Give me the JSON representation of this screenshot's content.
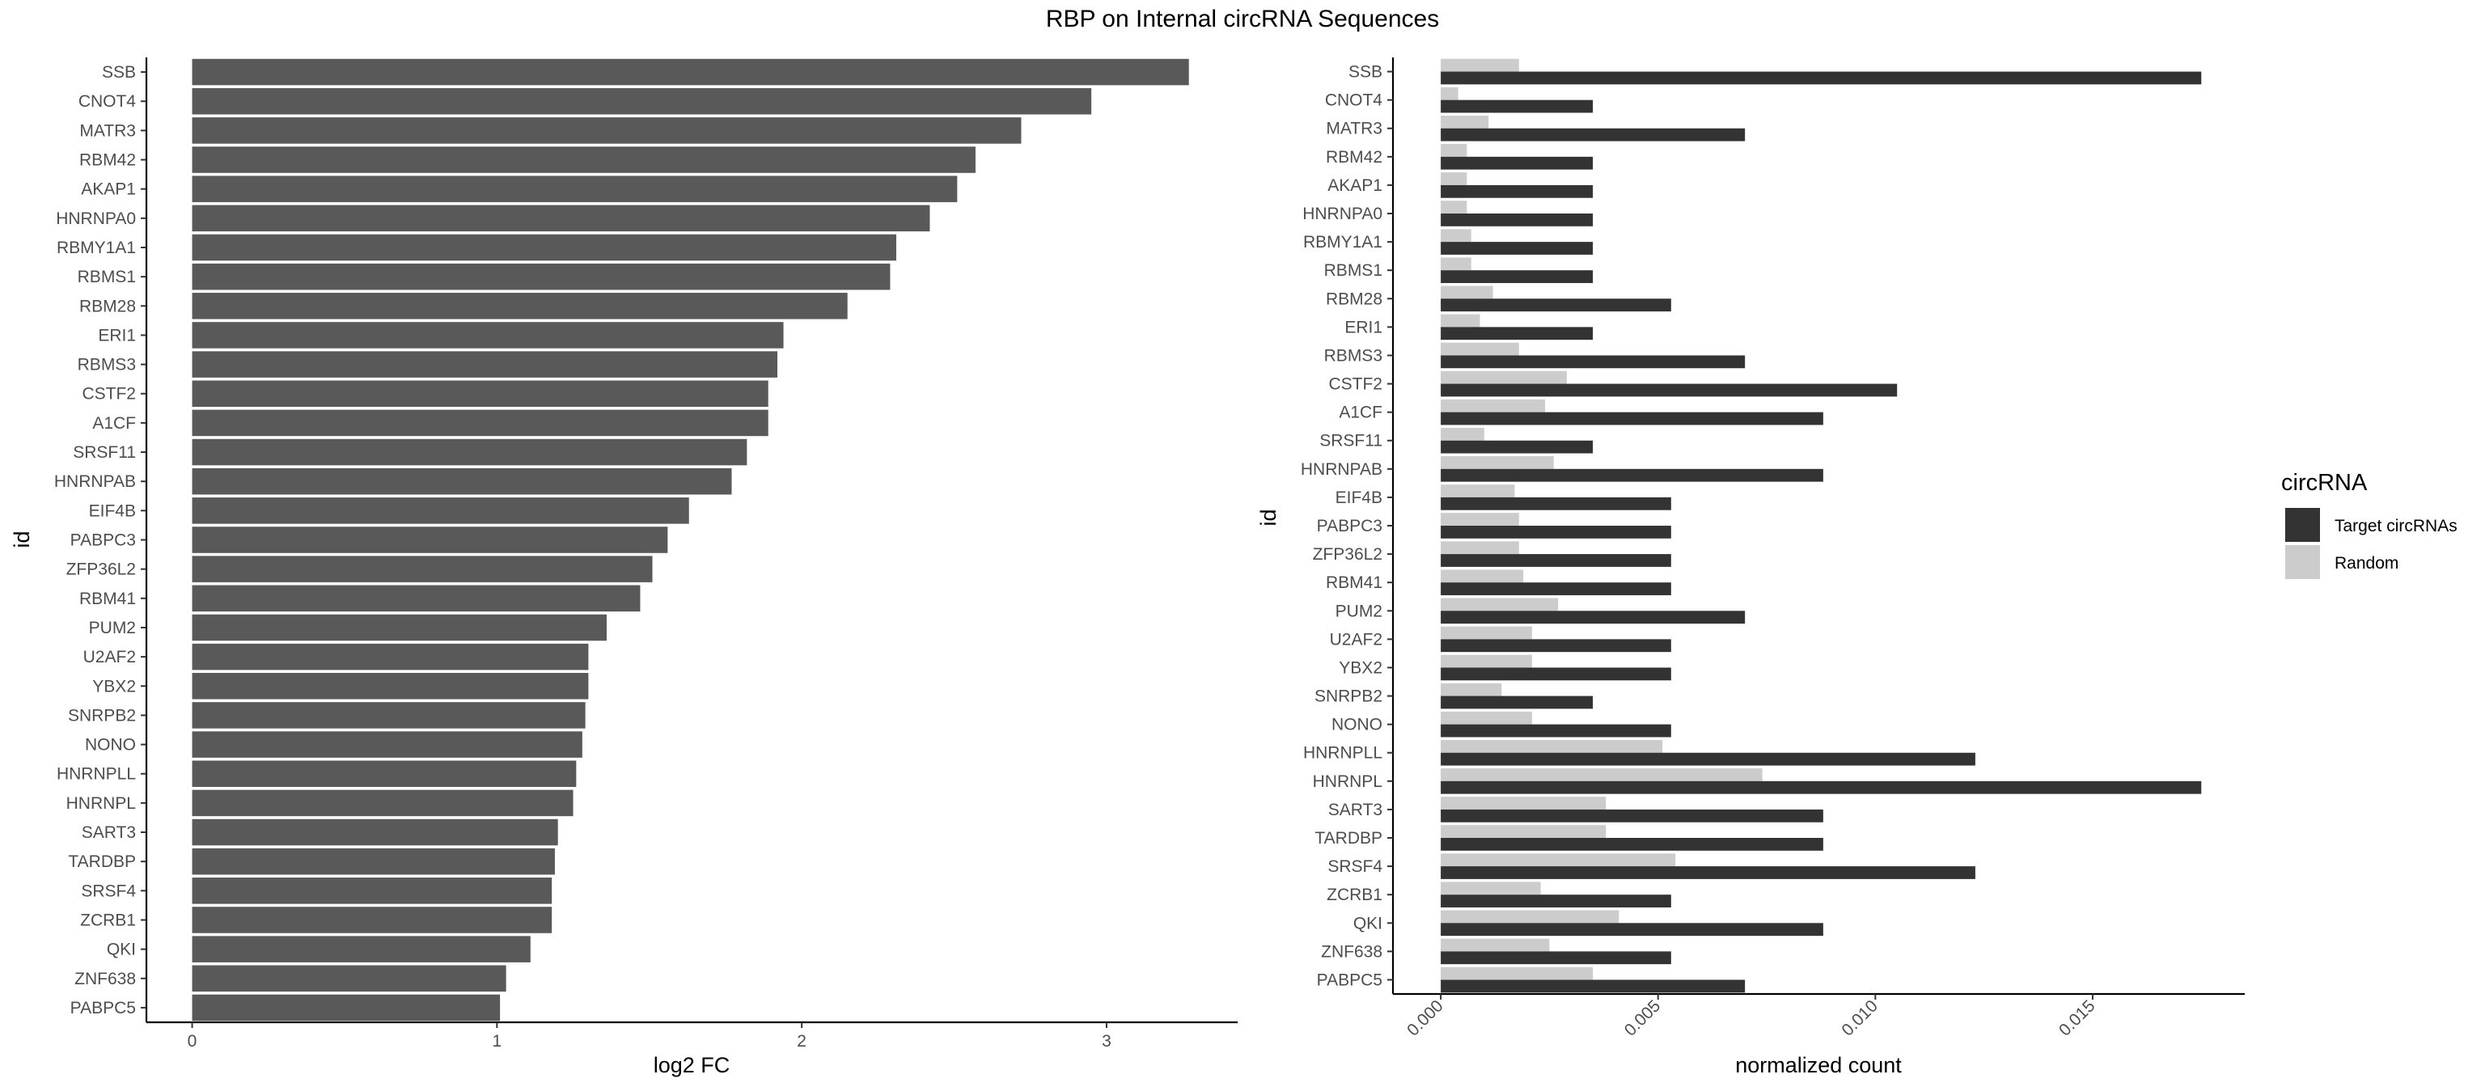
{
  "title": "RBP on Internal circRNA Sequences",
  "chart_data": [
    {
      "type": "bar",
      "orientation": "horizontal",
      "xlabel": "log2 FC",
      "ylabel": "id",
      "xlim": [
        -0.15,
        3.43
      ],
      "xticks": [
        0,
        1,
        2,
        3
      ],
      "bar_color": "#595959",
      "categories": [
        "SSB",
        "CNOT4",
        "MATR3",
        "RBM42",
        "AKAP1",
        "HNRNPA0",
        "RBMY1A1",
        "RBMS1",
        "RBM28",
        "ERI1",
        "RBMS3",
        "CSTF2",
        "A1CF",
        "SRSF11",
        "HNRNPAB",
        "EIF4B",
        "PABPC3",
        "ZFP36L2",
        "RBM41",
        "PUM2",
        "U2AF2",
        "YBX2",
        "SNRPB2",
        "NONO",
        "HNRNPLL",
        "HNRNPL",
        "SART3",
        "TARDBP",
        "SRSF4",
        "ZCRB1",
        "QKI",
        "ZNF638",
        "PABPC5"
      ],
      "values": [
        3.27,
        2.95,
        2.72,
        2.57,
        2.51,
        2.42,
        2.31,
        2.29,
        2.15,
        1.94,
        1.92,
        1.89,
        1.89,
        1.82,
        1.77,
        1.63,
        1.56,
        1.51,
        1.47,
        1.36,
        1.3,
        1.3,
        1.29,
        1.28,
        1.26,
        1.25,
        1.2,
        1.19,
        1.18,
        1.18,
        1.11,
        1.03,
        1.01
      ]
    },
    {
      "type": "bar",
      "orientation": "horizontal",
      "grouped": true,
      "xlabel": "normalized count",
      "ylabel": "id",
      "xlim": [
        -0.0011,
        0.0185
      ],
      "xticks": [
        "0.000",
        "0.005",
        "0.010",
        "0.015"
      ],
      "legend": {
        "title": "circRNA",
        "position": "right"
      },
      "categories": [
        "SSB",
        "CNOT4",
        "MATR3",
        "RBM42",
        "AKAP1",
        "HNRNPA0",
        "RBMY1A1",
        "RBMS1",
        "RBM28",
        "ERI1",
        "RBMS3",
        "CSTF2",
        "A1CF",
        "SRSF11",
        "HNRNPAB",
        "EIF4B",
        "PABPC3",
        "ZFP36L2",
        "RBM41",
        "PUM2",
        "U2AF2",
        "YBX2",
        "SNRPB2",
        "NONO",
        "HNRNPLL",
        "HNRNPL",
        "SART3",
        "TARDBP",
        "SRSF4",
        "ZCRB1",
        "QKI",
        "ZNF638",
        "PABPC5"
      ],
      "series": [
        {
          "name": "Target circRNAs",
          "color": "#333333",
          "values": [
            0.0175,
            0.0035,
            0.007,
            0.0035,
            0.0035,
            0.0035,
            0.0035,
            0.0035,
            0.0053,
            0.0035,
            0.007,
            0.0105,
            0.0088,
            0.0035,
            0.0088,
            0.0053,
            0.0053,
            0.0053,
            0.0053,
            0.007,
            0.0053,
            0.0053,
            0.0035,
            0.0053,
            0.0123,
            0.0175,
            0.0088,
            0.0088,
            0.0123,
            0.0053,
            0.0088,
            0.0053,
            0.007
          ]
        },
        {
          "name": "Random",
          "color": "#cccccc",
          "values": [
            0.0018,
            0.0004,
            0.0011,
            0.0006,
            0.0006,
            0.0006,
            0.0007,
            0.0007,
            0.0012,
            0.0009,
            0.0018,
            0.0029,
            0.0024,
            0.001,
            0.0026,
            0.0017,
            0.0018,
            0.0018,
            0.0019,
            0.0027,
            0.0021,
            0.0021,
            0.0014,
            0.0021,
            0.0051,
            0.0074,
            0.0038,
            0.0038,
            0.0054,
            0.0023,
            0.0041,
            0.0025,
            0.0035
          ]
        }
      ]
    }
  ]
}
